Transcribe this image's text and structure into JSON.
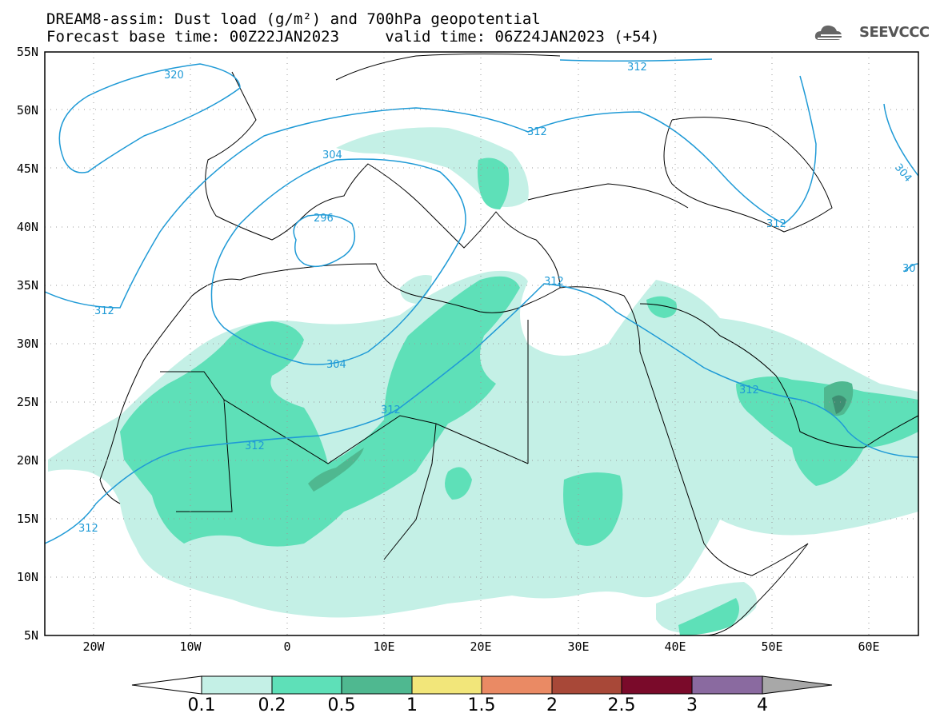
{
  "header": {
    "title_line1": "DREAM8-assim: Dust load (g/m²) and 700hPa geopotential",
    "title_line2": "Forecast base time: 00Z22JAN2023     valid time: 06Z24JAN2023 (+54)",
    "logo_text": "SEEVCCC",
    "logo_icon": "cloud-logo-icon"
  },
  "axes": {
    "lat_labels": [
      "55N",
      "50N",
      "45N",
      "40N",
      "35N",
      "30N",
      "25N",
      "20N",
      "15N",
      "10N",
      "5N"
    ],
    "lon_labels": [
      "20W",
      "10W",
      "0",
      "10E",
      "20E",
      "30E",
      "40E",
      "50E",
      "60E"
    ]
  },
  "contour_labels": [
    "320",
    "312",
    "304",
    "296",
    "312",
    "312",
    "304",
    "312",
    "312",
    "312",
    "312",
    "304",
    "30"
  ],
  "colorbar": {
    "labels": [
      "0.1",
      "0.2",
      "0.5",
      "1",
      "1.5",
      "2",
      "2.5",
      "3",
      "4"
    ],
    "colors": [
      "#c4f0e6",
      "#5ee0b8",
      "#4fb890",
      "#f2e67a",
      "#ea8a64",
      "#a84838",
      "#7a0a2a",
      "#8a6aa0",
      "#a8a8a8"
    ]
  },
  "colors": {
    "dust_light": "#c4f0e6",
    "dust_mid": "#5ee0b8",
    "dust_dark": "#4fb890",
    "dust_darker": "#3e8e72",
    "contour": "#1f9ad6",
    "coast": "#000000"
  }
}
